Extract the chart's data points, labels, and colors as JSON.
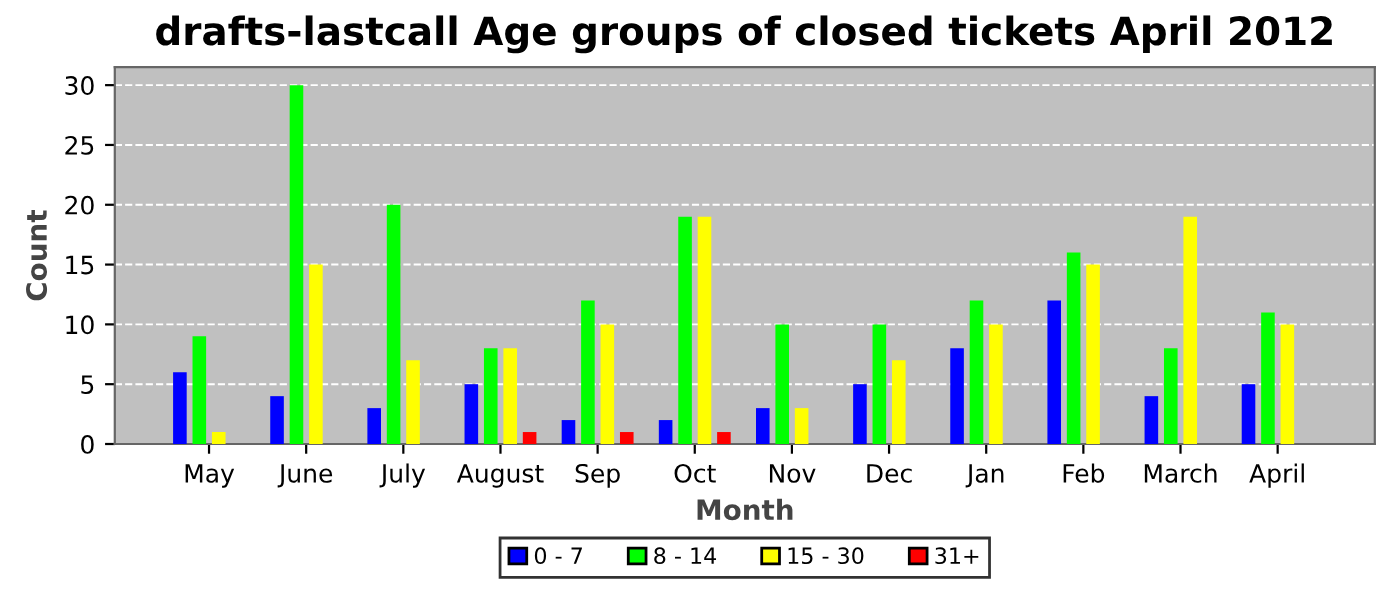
{
  "chart_data": {
    "type": "bar",
    "title": "drafts-lastcall Age groups of closed tickets April 2012",
    "xlabel": "Month",
    "ylabel": "Count",
    "categories": [
      "May",
      "June",
      "July",
      "August",
      "Sep",
      "Oct",
      "Nov",
      "Dec",
      "Jan",
      "Feb",
      "March",
      "April"
    ],
    "series": [
      {
        "name": "0 - 7",
        "color": "#0000ff",
        "values": [
          6,
          4,
          3,
          5,
          2,
          2,
          3,
          5,
          8,
          12,
          4,
          5
        ]
      },
      {
        "name": "8 - 14",
        "color": "#00ff00",
        "values": [
          9,
          30,
          20,
          8,
          12,
          19,
          10,
          10,
          12,
          16,
          8,
          11
        ]
      },
      {
        "name": "15 - 30",
        "color": "#ffff00",
        "values": [
          1,
          15,
          7,
          8,
          10,
          19,
          3,
          7,
          10,
          15,
          19,
          10
        ]
      },
      {
        "name": "31+",
        "color": "#ff0000",
        "values": [
          0,
          0,
          0,
          1,
          1,
          1,
          0,
          0,
          0,
          0,
          0,
          0
        ]
      }
    ],
    "ylim": [
      0,
      31.5
    ],
    "yticks": [
      0,
      5,
      10,
      15,
      20,
      25,
      30
    ],
    "grid": "y",
    "legend": "bottom"
  }
}
